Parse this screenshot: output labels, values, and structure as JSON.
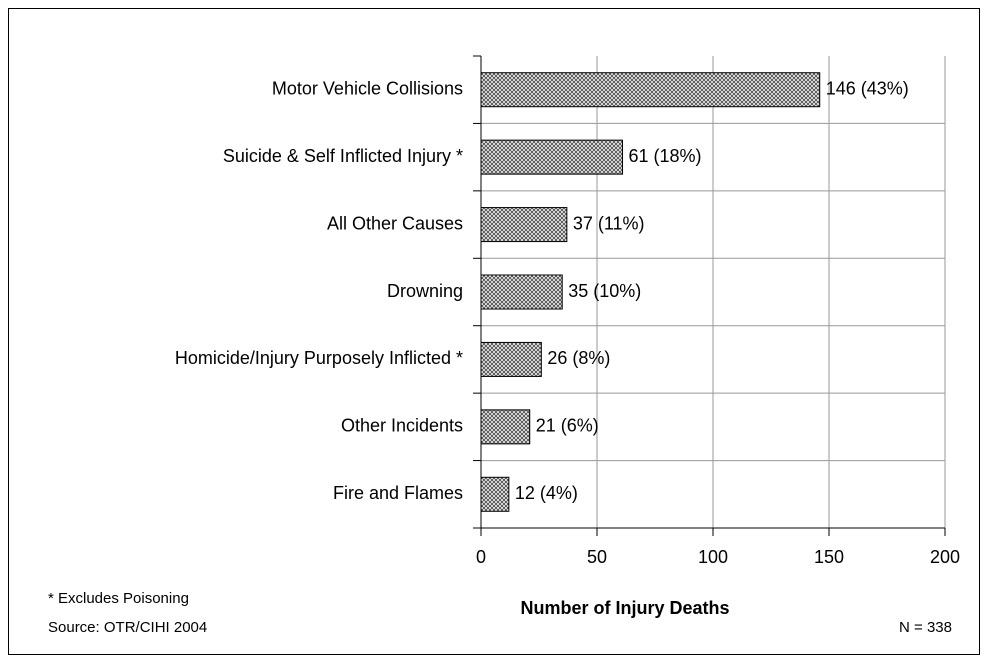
{
  "chart_data": {
    "type": "barh",
    "categories": [
      "Motor Vehicle Collisions",
      "Suicide & Self Inflicted Injury *",
      "All Other Causes",
      "Drowning",
      "Homicide/Injury Purposely Inflicted *",
      "Other Incidents",
      "Fire and Flames"
    ],
    "values": [
      146,
      61,
      37,
      35,
      26,
      21,
      12
    ],
    "value_labels": [
      "146 (43%)",
      "61 (18%)",
      "37 (11%)",
      "35 (10%)",
      "26 (8%)",
      "21 (6%)",
      "12 (4%)"
    ],
    "color": "#808080",
    "xlim": [
      0,
      200
    ],
    "xticks": [
      0,
      50,
      100,
      150,
      200
    ],
    "grid": true,
    "xlabel": "Number of Injury Deaths",
    "annotations": [
      "* Excludes Poisoning",
      "Source: OTR/CIHI 2004",
      "N = 338"
    ]
  }
}
